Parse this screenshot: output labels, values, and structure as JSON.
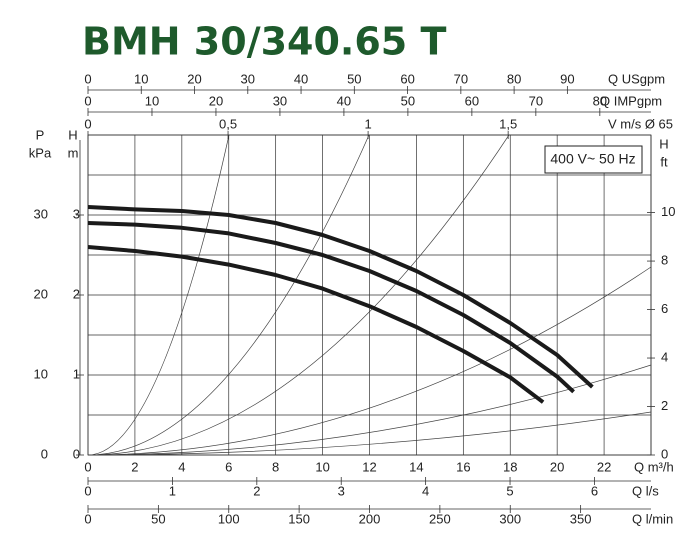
{
  "chart_data": {
    "type": "line",
    "title": "BMH 30/340.65 T",
    "annotation": "400 V~ 50 Hz",
    "xlabel": "Q m³/h",
    "xlim": [
      0,
      24
    ],
    "xticks": [
      0,
      2,
      4,
      6,
      8,
      10,
      12,
      14,
      16,
      18,
      20,
      22
    ],
    "ylabel": [
      "H",
      "m"
    ],
    "ylim": [
      0,
      4
    ],
    "yticks": [
      0,
      1,
      2,
      3
    ],
    "minor_yticks": [
      0.5,
      1.5,
      2.5,
      3.5
    ],
    "grid": true,
    "series": [
      {
        "color": "#1a1a1a",
        "x": [
          0,
          2,
          4,
          6,
          8,
          10,
          12,
          14,
          16,
          18,
          20,
          21.5
        ],
        "values": [
          3.1,
          3.07,
          3.05,
          3.0,
          2.9,
          2.75,
          2.55,
          2.3,
          2.0,
          1.65,
          1.25,
          0.85
        ]
      },
      {
        "color": "#1a1a1a",
        "x": [
          0,
          2,
          4,
          6,
          8,
          10,
          12,
          14,
          16,
          18,
          20,
          20.7
        ],
        "values": [
          2.9,
          2.88,
          2.84,
          2.77,
          2.65,
          2.5,
          2.3,
          2.05,
          1.75,
          1.4,
          0.98,
          0.79
        ]
      },
      {
        "color": "#1a1a1a",
        "x": [
          0,
          2,
          4,
          6,
          8,
          10,
          12,
          14,
          16,
          18,
          19.4
        ],
        "values": [
          2.6,
          2.55,
          2.48,
          2.38,
          2.25,
          2.08,
          1.86,
          1.6,
          1.3,
          0.97,
          0.66
        ]
      }
    ],
    "extra_axes": [
      {
        "position": "top",
        "label": "Q USgpm",
        "lim": [
          0,
          105.7
        ],
        "ticks": [
          0,
          10,
          20,
          30,
          40,
          50,
          60,
          70,
          80,
          90
        ]
      },
      {
        "position": "top",
        "label": "Q IMPgpm",
        "lim": [
          0,
          88
        ],
        "ticks": [
          0,
          10,
          20,
          30,
          40,
          50,
          60,
          70,
          80
        ]
      },
      {
        "position": "top",
        "label": "V m/s Ø 65",
        "lim": [
          0,
          2.01
        ],
        "ticks": [
          0,
          {
            "value": 0.5,
            "label": "0,5"
          },
          1,
          {
            "value": 1.5,
            "label": "1,5"
          }
        ]
      },
      {
        "position": "bottom",
        "label": "Q l/s",
        "lim": [
          0,
          6.67
        ],
        "ticks": [
          0,
          1,
          2,
          3,
          4,
          5,
          6
        ]
      },
      {
        "position": "bottom",
        "label": "Q l/min",
        "lim": [
          0,
          400
        ],
        "ticks": [
          0,
          50,
          100,
          150,
          200,
          250,
          300,
          350
        ]
      },
      {
        "position": "left",
        "label": [
          "P",
          "kPa"
        ],
        "lim": [
          0,
          40
        ],
        "ticks": [
          0,
          10,
          20,
          30
        ]
      },
      {
        "position": "right",
        "label": [
          "H",
          "ft"
        ],
        "lim": [
          0,
          13.2
        ],
        "ticks": [
          0,
          2,
          4,
          6,
          8,
          10
        ]
      }
    ]
  }
}
